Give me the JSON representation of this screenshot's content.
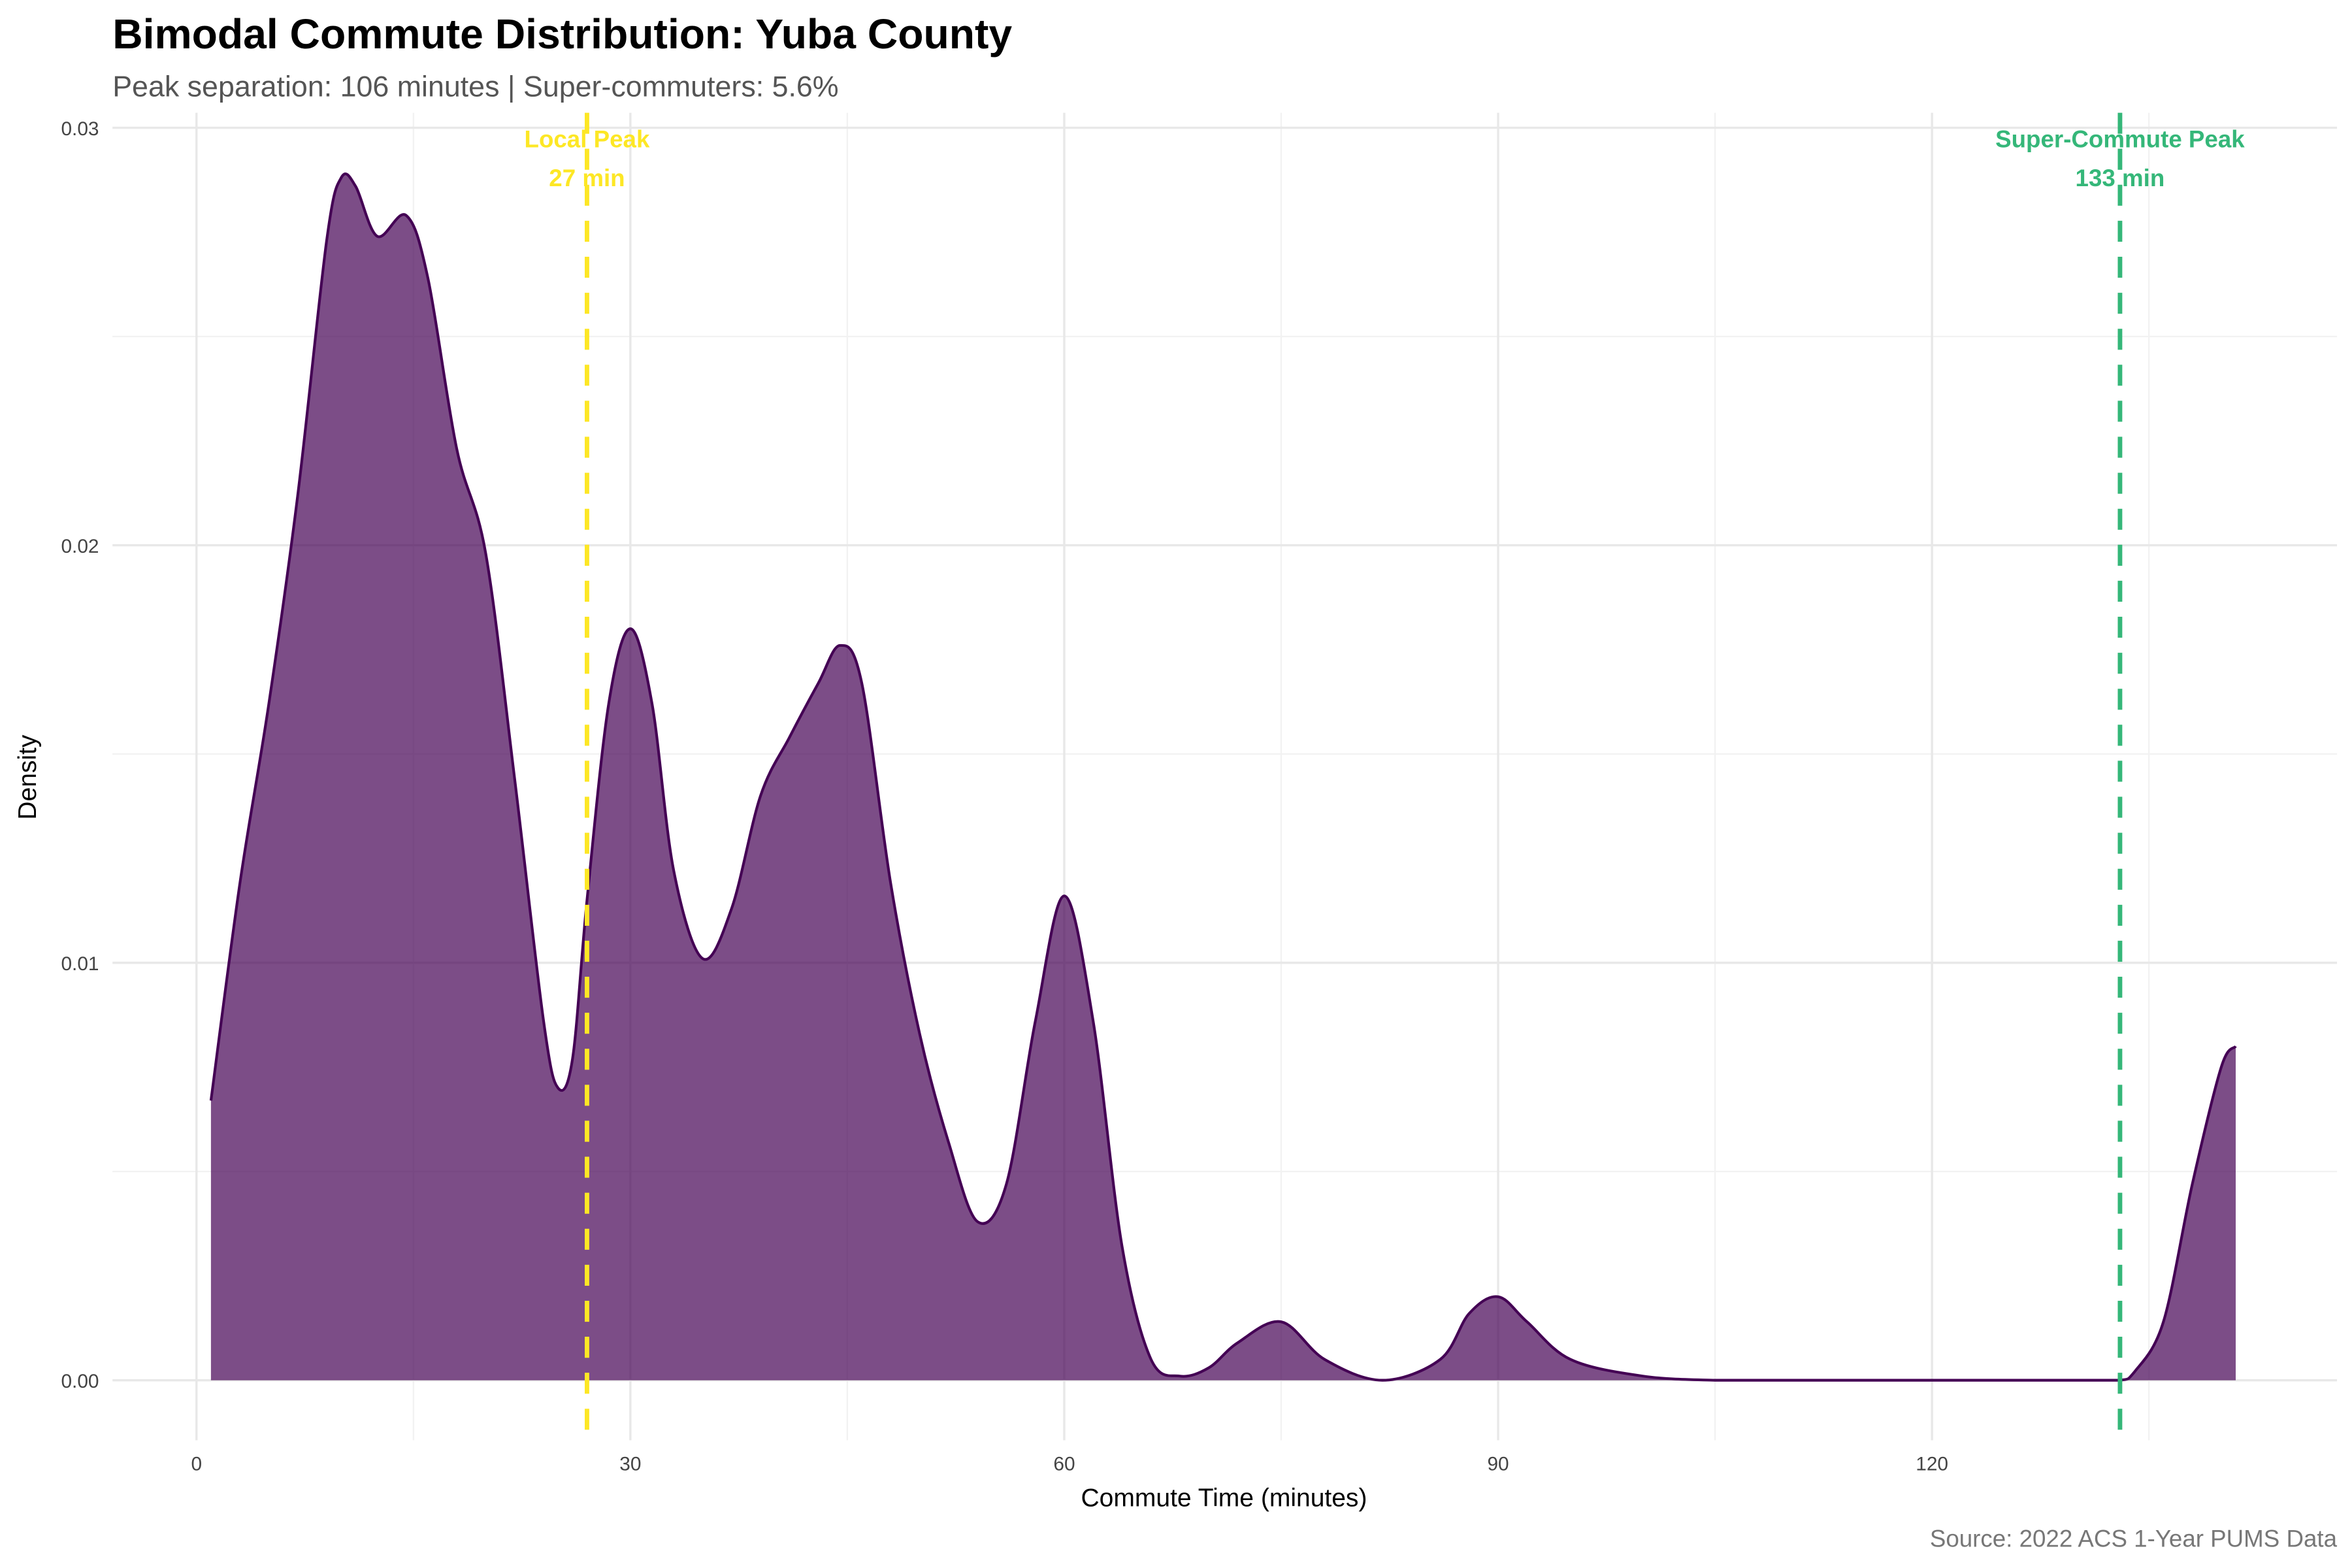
{
  "chart_data": {
    "type": "area",
    "title": "Bimodal Commute Distribution: Yuba County",
    "subtitle": "Peak separation: 106 minutes | Super-commuters: 5.6%",
    "xlabel": "Commute Time (minutes)",
    "ylabel": "Density",
    "caption": "Source: 2022 ACS 1-Year PUMS Data",
    "xlim": [
      -5,
      147
    ],
    "ylim": [
      -0.0013,
      0.0301
    ],
    "x_ticks": [
      0,
      30,
      60,
      90,
      120
    ],
    "x_tick_labels": [
      "0",
      "30",
      "60",
      "90",
      "120"
    ],
    "y_ticks": [
      0,
      0.01,
      0.02,
      0.03
    ],
    "y_tick_labels": [
      "0.00",
      "0.01",
      "0.02",
      "0.03"
    ],
    "grid": true,
    "colors": {
      "fill": "#440154",
      "line": "#440154",
      "local_peak": "#FDE725",
      "super_peak": "#35B779"
    },
    "series": [
      {
        "x": [
          1,
          3,
          5,
          7,
          9,
          10,
          11,
          12.5,
          14.5,
          16,
          18,
          20,
          22,
          24,
          25,
          26,
          27,
          28.5,
          30,
          31.5,
          33,
          35,
          37,
          39,
          41,
          43,
          44.5,
          46,
          48,
          50,
          52,
          54,
          56,
          58,
          60,
          62,
          64,
          66,
          68,
          70,
          72,
          75,
          78,
          82,
          86,
          88,
          90,
          92,
          95,
          100,
          105,
          110,
          120,
          130,
          133,
          134,
          136,
          138,
          140,
          141
        ],
        "y": [
          0.0067,
          0.0119,
          0.0162,
          0.0212,
          0.0273,
          0.0288,
          0.0286,
          0.0274,
          0.0279,
          0.0264,
          0.0223,
          0.0198,
          0.0144,
          0.0086,
          0.007,
          0.0077,
          0.0115,
          0.0162,
          0.018,
          0.0162,
          0.0122,
          0.0101,
          0.0113,
          0.014,
          0.0154,
          0.0167,
          0.0176,
          0.0167,
          0.0119,
          0.0083,
          0.0057,
          0.0038,
          0.0047,
          0.0086,
          0.0116,
          0.0086,
          0.0032,
          0.0005,
          0.0001,
          0.0003,
          0.0009,
          0.0014,
          0.0005,
          0.0,
          0.0005,
          0.0016,
          0.002,
          0.0014,
          0.0005,
          0.0001,
          0,
          0,
          0,
          0,
          0,
          0.0002,
          0.0014,
          0.0047,
          0.0075,
          0.008
        ]
      }
    ],
    "annotations": [
      {
        "x": 27,
        "line1": "Local Peak",
        "line2": "27 min",
        "color": "#FDE725"
      },
      {
        "x": 133,
        "line1": "Super-Commute Peak",
        "line2": "133 min",
        "color": "#35B779"
      }
    ]
  }
}
